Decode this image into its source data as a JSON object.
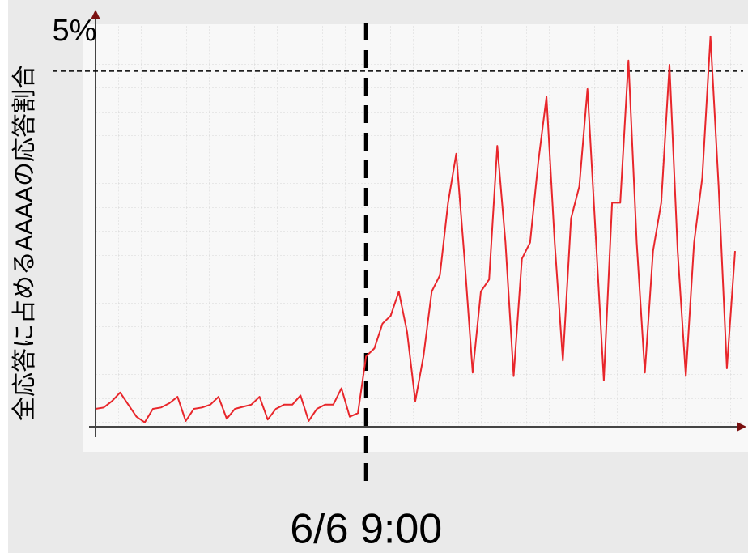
{
  "chart_data": {
    "type": "line",
    "y_label": "全応答に占めるAAAAの応答割合",
    "categories": [
      null,
      null,
      null,
      null,
      null,
      null,
      null,
      null,
      null,
      null,
      null,
      null,
      null,
      null,
      null,
      null,
      null,
      null,
      null,
      null,
      null,
      null,
      null,
      null,
      null,
      null,
      null,
      null,
      null,
      null,
      null,
      null,
      null,
      "6/6 9:00",
      null,
      null,
      null,
      null,
      null,
      null,
      null,
      null,
      null,
      null,
      null,
      null,
      null,
      null,
      null,
      null,
      null,
      null,
      null,
      null,
      null,
      null,
      null,
      null,
      null,
      null,
      null,
      null,
      null,
      null,
      null,
      null,
      null,
      null,
      null,
      null,
      null,
      null,
      null,
      null,
      null,
      null,
      null,
      null,
      null
    ],
    "series": [
      {
        "color": "#e8262b",
        "values": [
          0.25,
          0.27,
          0.36,
          0.48,
          0.31,
          0.14,
          0.06,
          0.25,
          0.27,
          0.33,
          0.42,
          0.08,
          0.25,
          0.27,
          0.31,
          0.42,
          0.11,
          0.25,
          0.28,
          0.31,
          0.42,
          0.1,
          0.25,
          0.31,
          0.31,
          0.44,
          0.08,
          0.25,
          0.31,
          0.31,
          0.54,
          0.14,
          0.19,
          0.99,
          1.1,
          1.45,
          1.56,
          1.9,
          1.33,
          0.36,
          0.99,
          1.9,
          2.13,
          3.15,
          3.84,
          2.36,
          0.76,
          1.9,
          2.07,
          3.95,
          2.59,
          0.71,
          2.36,
          2.59,
          3.72,
          4.64,
          2.59,
          0.93,
          2.93,
          3.38,
          4.75,
          2.7,
          0.65,
          3.15,
          3.15,
          5.15,
          2.59,
          0.76,
          2.47,
          3.15,
          5.09,
          2.47,
          0.71,
          2.59,
          3.5,
          5.49,
          3.38,
          0.82,
          2.47
        ]
      }
    ],
    "ylim": [
      0,
      5.5
    ],
    "yticks": [
      {
        "value": 5,
        "label": "5%"
      }
    ]
  }
}
